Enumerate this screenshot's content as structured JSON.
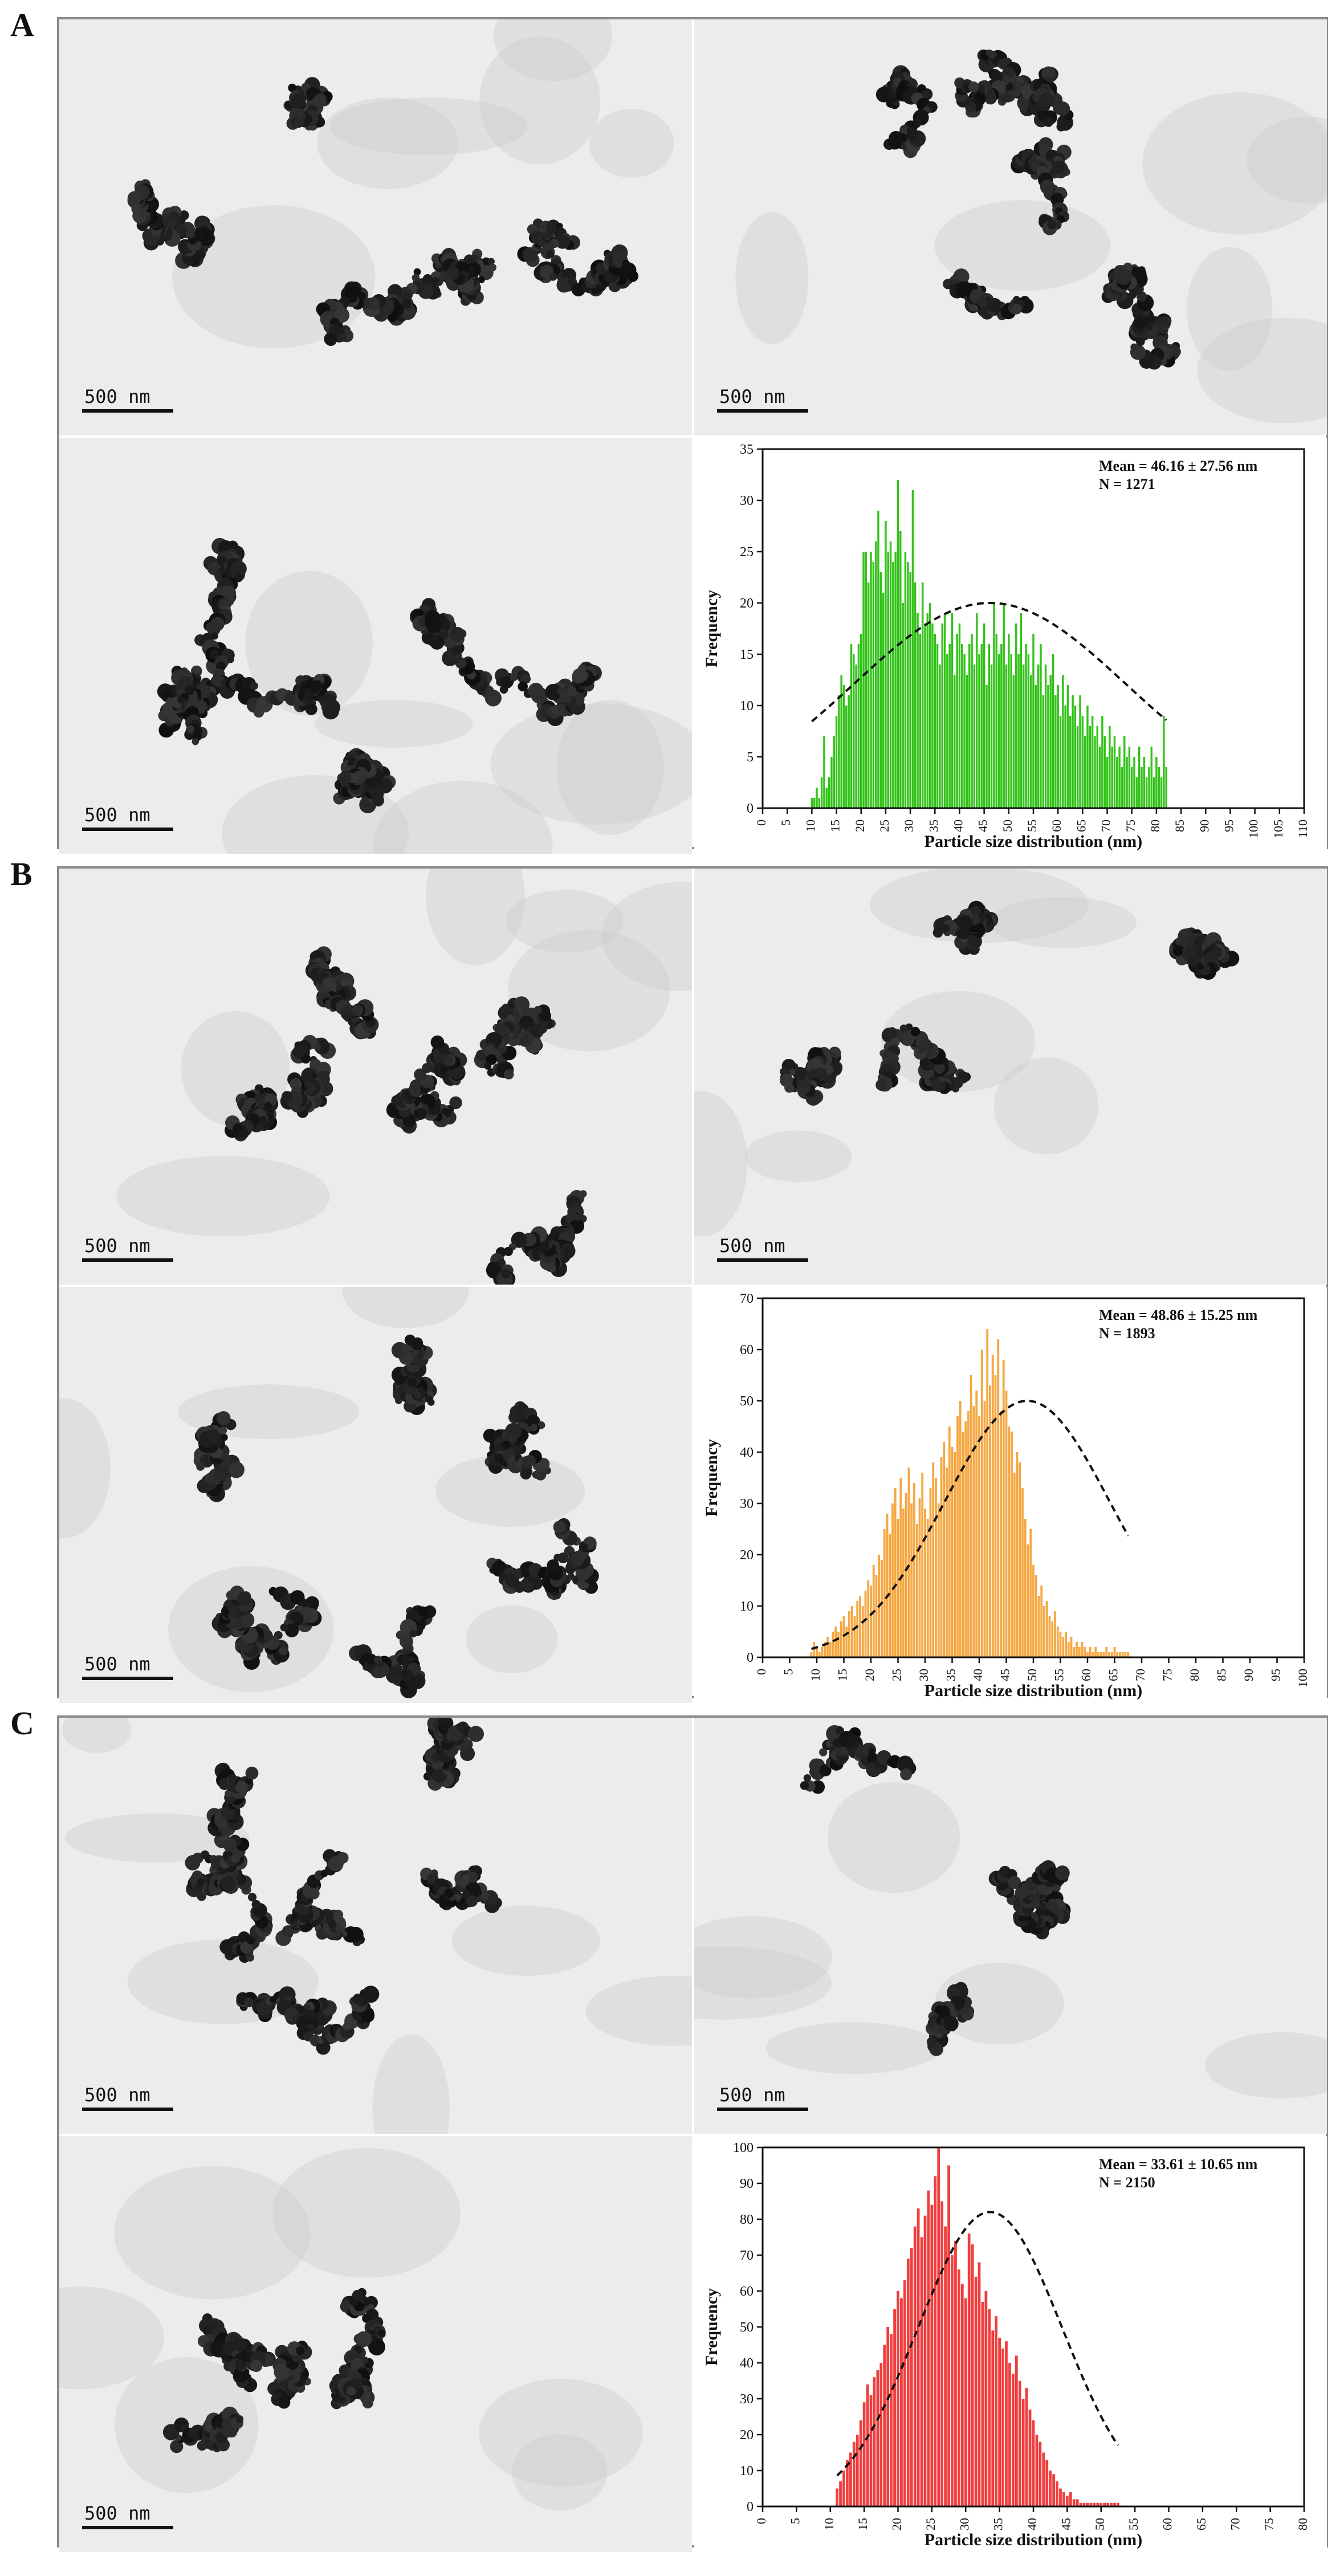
{
  "figure": {
    "panels": [
      {
        "letter": "A",
        "scale_bar_label": "500 nm",
        "stats": {
          "mean_label": "Mean = 46.16 ± 27.56 nm",
          "n_label": "N = 1271"
        }
      },
      {
        "letter": "B",
        "scale_bar_label": "500 nm",
        "stats": {
          "mean_label": "Mean = 48.86 ± 15.25 nm",
          "n_label": "N = 1893"
        }
      },
      {
        "letter": "C",
        "scale_bar_label": "500 nm",
        "stats": {
          "mean_label": "Mean = 33.61 ± 10.65 nm",
          "n_label": "N = 2150"
        }
      }
    ]
  },
  "chart_data": [
    {
      "type": "bar",
      "panel": "A",
      "xlabel": "Particle size distribution (nm)",
      "ylabel": "Frequency",
      "xlim": [
        0,
        110
      ],
      "ylim": [
        0,
        35
      ],
      "xticks": [
        0,
        5,
        10,
        15,
        20,
        25,
        30,
        35,
        40,
        45,
        50,
        55,
        60,
        65,
        70,
        75,
        80,
        85,
        90,
        95,
        100,
        105,
        110
      ],
      "yticks": [
        0,
        5,
        10,
        15,
        20,
        25,
        30,
        35
      ],
      "bar_color": "#33c21a",
      "fit": {
        "type": "gaussian",
        "mean": 46.16,
        "sd": 27.56,
        "peak": 20
      },
      "x_start": 10,
      "x_step": 0.5,
      "values": [
        1,
        1,
        2,
        1,
        3,
        7,
        2,
        3,
        5,
        7,
        9,
        11,
        13,
        12,
        10,
        11,
        16,
        15,
        14,
        16,
        17,
        25,
        25,
        22,
        25,
        24,
        26,
        29,
        23,
        21,
        28,
        25,
        26,
        24,
        25,
        32,
        27,
        20,
        25,
        24,
        23,
        31,
        22,
        19,
        17,
        22,
        18,
        19,
        20,
        18,
        17,
        16,
        14,
        18,
        19,
        15,
        16,
        19,
        13,
        17,
        18,
        16,
        15,
        13,
        16,
        17,
        14,
        19,
        15,
        16,
        18,
        12,
        16,
        14,
        20,
        17,
        15,
        16,
        20,
        14,
        17,
        15,
        13,
        18,
        15,
        19,
        14,
        16,
        15,
        13,
        17,
        12,
        14,
        16,
        11,
        14,
        12,
        13,
        15,
        11,
        12,
        9,
        13,
        10,
        12,
        9,
        11,
        10,
        8,
        11,
        9,
        7,
        10,
        8,
        9,
        7,
        8,
        6,
        9,
        7,
        5,
        8,
        6,
        7,
        5,
        6,
        4,
        7,
        5,
        6,
        4,
        5,
        3,
        6,
        4,
        5,
        3,
        4,
        6,
        3,
        5,
        4,
        3,
        9,
        4
      ]
    },
    {
      "type": "bar",
      "panel": "B",
      "xlabel": "Particle size distribution (nm)",
      "ylabel": "Frequency",
      "xlim": [
        0,
        100
      ],
      "ylim": [
        0,
        70
      ],
      "xticks": [
        0,
        5,
        10,
        15,
        20,
        25,
        30,
        35,
        40,
        45,
        50,
        55,
        60,
        65,
        70,
        75,
        80,
        85,
        90,
        95,
        100
      ],
      "yticks": [
        0,
        10,
        20,
        30,
        40,
        50,
        60,
        70
      ],
      "bar_color": "#f5a742",
      "fit": {
        "type": "gaussian",
        "mean": 48.86,
        "sd": 15.25,
        "peak": 50
      },
      "x_start": 9,
      "x_step": 0.5,
      "values": [
        1,
        3,
        2,
        1,
        2,
        3,
        4,
        3,
        5,
        6,
        5,
        7,
        8,
        6,
        9,
        10,
        8,
        11,
        12,
        10,
        13,
        15,
        14,
        18,
        16,
        20,
        19,
        25,
        28,
        24,
        30,
        33,
        27,
        35,
        29,
        32,
        37,
        30,
        34,
        26,
        31,
        36,
        29,
        27,
        33,
        38,
        35,
        30,
        39,
        42,
        37,
        45,
        41,
        40,
        47,
        50,
        44,
        46,
        48,
        55,
        49,
        52,
        47,
        60,
        50,
        64,
        53,
        59,
        55,
        62,
        48,
        58,
        52,
        45,
        44,
        36,
        40,
        38,
        33,
        27,
        22,
        25,
        18,
        16,
        12,
        14,
        10,
        11,
        8,
        7,
        9,
        6,
        5,
        4,
        5,
        3,
        4,
        2,
        3,
        2,
        3,
        2,
        1,
        2,
        1,
        2,
        1,
        1,
        1,
        2,
        1,
        1,
        2,
        1,
        1,
        1,
        1,
        1
      ]
    },
    {
      "type": "bar",
      "panel": "C",
      "xlabel": "Particle size distribution (nm)",
      "ylabel": "Frequency",
      "xlim": [
        0,
        80
      ],
      "ylim": [
        0,
        100
      ],
      "xticks": [
        0,
        5,
        10,
        15,
        20,
        25,
        30,
        35,
        40,
        45,
        50,
        55,
        60,
        65,
        70,
        75,
        80
      ],
      "yticks": [
        0,
        10,
        20,
        30,
        40,
        50,
        60,
        70,
        80,
        90,
        100
      ],
      "bar_color": "#ef3e3e",
      "fit": {
        "type": "gaussian",
        "mean": 33.61,
        "sd": 10.65,
        "peak": 82
      },
      "x_start": 11,
      "x_step": 0.5,
      "values": [
        5,
        7,
        10,
        13,
        15,
        18,
        20,
        24,
        29,
        34,
        31,
        36,
        38,
        40,
        45,
        50,
        48,
        55,
        60,
        58,
        63,
        69,
        72,
        78,
        83,
        75,
        81,
        88,
        84,
        92,
        100,
        85,
        78,
        95,
        70,
        74,
        66,
        62,
        58,
        76,
        73,
        64,
        68,
        57,
        60,
        55,
        49,
        53,
        47,
        44,
        46,
        40,
        37,
        42,
        35,
        30,
        33,
        27,
        24,
        20,
        18,
        15,
        13,
        10,
        9,
        7,
        5,
        4,
        3,
        4,
        2,
        2,
        1,
        1,
        1,
        1,
        1,
        1,
        1,
        1,
        1,
        1,
        1,
        1
      ]
    }
  ]
}
